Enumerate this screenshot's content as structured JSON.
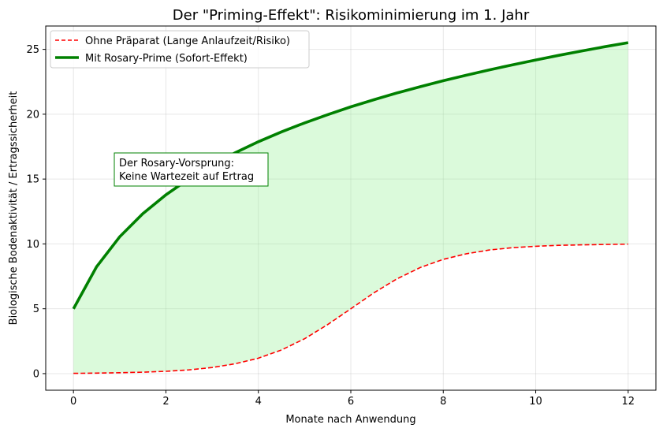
{
  "chart_data": {
    "type": "line",
    "title": "Der \"Priming-Effekt\": Risikominimierung im 1. Jahr",
    "xlabel": "Monate nach Anwendung",
    "ylabel": "Biologische Bodenaktivität / Ertragssicherheit",
    "xlim": [
      -0.6,
      12.6
    ],
    "ylim": [
      -1.28,
      26.8
    ],
    "xticks": [
      0,
      2,
      4,
      6,
      8,
      10,
      12
    ],
    "yticks": [
      0,
      5,
      10,
      15,
      20,
      25
    ],
    "grid": true,
    "legend_position": "top-left",
    "x": [
      0,
      0.5,
      1,
      1.5,
      2,
      2.5,
      3,
      3.5,
      4,
      4.5,
      5,
      5.5,
      6,
      6.5,
      7,
      7.5,
      8,
      8.5,
      9,
      9.5,
      10,
      10.5,
      11,
      11.5,
      12
    ],
    "series": [
      {
        "name": "Ohne Präparat (Lange Anlaufzeit/Risiko)",
        "color": "#ff0000",
        "style": "dashed",
        "values": [
          0.02,
          0.04,
          0.07,
          0.11,
          0.18,
          0.29,
          0.47,
          0.76,
          1.19,
          1.82,
          2.69,
          3.78,
          5.0,
          6.23,
          7.31,
          8.18,
          8.81,
          9.24,
          9.53,
          9.71,
          9.82,
          9.89,
          9.93,
          9.96,
          9.98
        ]
      },
      {
        "name": "Mit Rosary-Prime (Sofort-Effekt)",
        "color": "#008000",
        "style": "solid",
        "values": [
          5.0,
          8.24,
          10.55,
          12.33,
          13.79,
          15.02,
          16.09,
          17.03,
          17.88,
          18.64,
          19.33,
          19.97,
          20.57,
          21.12,
          21.64,
          22.12,
          22.58,
          23.01,
          23.42,
          23.81,
          24.18,
          24.54,
          24.88,
          25.21,
          25.52
        ]
      }
    ],
    "fill_between": {
      "color": "#90ee90",
      "opacity": 0.32
    },
    "annotation": {
      "lines": [
        "Der Rosary-Vorsprung:",
        "Keine Wartezeit auf Ertrag"
      ],
      "x": 1,
      "y": 15,
      "border_color": "#008000"
    }
  }
}
